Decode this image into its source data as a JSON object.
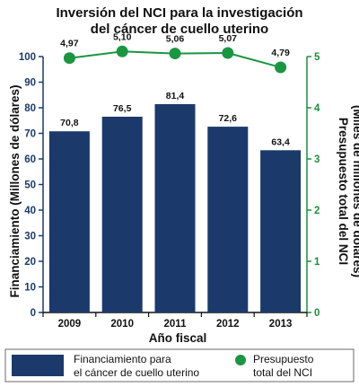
{
  "chart_data": {
    "type": "bar",
    "title": [
      "Inversión del NCI para la investigación",
      "del cáncer de cuello uterino"
    ],
    "xlabel": "Año fiscal",
    "ylabel": "Financiamiento (Millones de dólares)",
    "y2label": [
      "Presupuesto total del NCI",
      "(Miles de millones de dólares)"
    ],
    "categories": [
      "2009",
      "2010",
      "2011",
      "2012",
      "2013"
    ],
    "ylim": [
      0,
      100
    ],
    "yticks": [
      "0",
      "10",
      "20",
      "30",
      "40",
      "50",
      "60",
      "70",
      "80",
      "90",
      "100"
    ],
    "y2lim": [
      0,
      5
    ],
    "y2ticks": [
      "0",
      "1",
      "2",
      "3",
      "4",
      "5"
    ],
    "legend_position": "bottom",
    "series": [
      {
        "name": [
          "Financiamiento para",
          "el cáncer de cuello uterino"
        ],
        "type": "bar",
        "axis": "left",
        "values": [
          70.8,
          76.5,
          81.4,
          72.6,
          63.4
        ],
        "labels": [
          "70,8",
          "76,5",
          "81,4",
          "72,6",
          "63,4"
        ],
        "color": "#1b3a6b"
      },
      {
        "name": [
          "Presupuesto",
          "total del NCI"
        ],
        "type": "line",
        "axis": "right",
        "values": [
          4.97,
          5.1,
          5.06,
          5.07,
          4.79
        ],
        "labels": [
          "4,97",
          "5,10",
          "5,06",
          "5,07",
          "4,79"
        ],
        "color": "#1a9641"
      }
    ]
  }
}
